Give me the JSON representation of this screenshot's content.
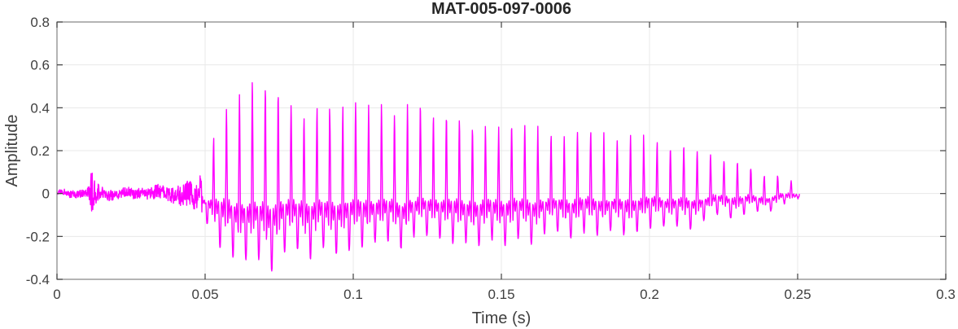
{
  "figure": {
    "title": "MAT-005-097-0006",
    "xlabel": "Time (s)",
    "ylabel": "Amplitude",
    "x_tick_labels": [
      "0",
      "0.05",
      "0.1",
      "0.15",
      "0.2",
      "0.25",
      "0.3"
    ],
    "y_tick_labels": [
      "-0.4",
      "-0.2",
      "0",
      "0.2",
      "0.4",
      "0.6",
      "0.8"
    ],
    "colors": {
      "background": "#ffffff",
      "line": "#FF00FF",
      "axis_box": "#8c8c8c",
      "tick_mark": "#3f3f3f",
      "grid": "#e8e8e8",
      "tick_label": "#3f3f3f",
      "axis_label": "#3f3f3f",
      "title": "#262626"
    }
  },
  "chart_data": {
    "type": "line",
    "title": "MAT-005-097-0006",
    "xlabel": "Time (s)",
    "ylabel": "Amplitude",
    "xlim": [
      0,
      0.3
    ],
    "ylim": [
      -0.4,
      0.8
    ],
    "x_ticks": [
      0,
      0.05,
      0.1,
      0.15,
      0.2,
      0.25,
      0.3
    ],
    "y_ticks": [
      -0.4,
      -0.2,
      0,
      0.2,
      0.4,
      0.6,
      0.8
    ],
    "grid": true,
    "legend": "none",
    "series": [
      {
        "name": "audio-waveform",
        "color": "#FF00FF",
        "approx_f0_hz": 225,
        "signal_start": 0,
        "voiced_onset": 0.043,
        "end_time": 0.25,
        "click_transient": {
          "time": 0.0118,
          "peak_amplitude": 0.11,
          "min_amplitude": -0.1
        },
        "peak": {
          "time": 0.068,
          "amplitude": 0.61
        },
        "trough": {
          "time": 0.068,
          "amplitude": -0.37
        },
        "envelope": {
          "t": [
            0,
            0.01,
            0.0115,
            0.0125,
            0.014,
            0.02,
            0.03,
            0.04,
            0.044,
            0.048,
            0.052,
            0.056,
            0.06,
            0.064,
            0.068,
            0.072,
            0.077,
            0.082,
            0.087,
            0.092,
            0.098,
            0.104,
            0.11,
            0.116,
            0.122,
            0.128,
            0.134,
            0.14,
            0.146,
            0.152,
            0.158,
            0.164,
            0.17,
            0.176,
            0.182,
            0.188,
            0.194,
            0.2,
            0.206,
            0.212,
            0.218,
            0.224,
            0.23,
            0.236,
            0.242,
            0.247,
            0.25
          ],
          "upper": [
            0.015,
            0.02,
            0.06,
            0.05,
            0.03,
            0.025,
            0.03,
            0.045,
            0.08,
            0.14,
            0.24,
            0.35,
            0.47,
            0.55,
            0.61,
            0.55,
            0.47,
            0.41,
            0.38,
            0.45,
            0.43,
            0.41,
            0.42,
            0.4,
            0.42,
            0.36,
            0.33,
            0.32,
            0.33,
            0.3,
            0.29,
            0.3,
            0.29,
            0.33,
            0.29,
            0.28,
            0.26,
            0.27,
            0.24,
            0.26,
            0.22,
            0.19,
            0.17,
            0.13,
            0.09,
            0.06,
            0.03
          ],
          "lower": [
            -0.015,
            -0.02,
            -0.05,
            -0.045,
            -0.03,
            -0.025,
            -0.03,
            -0.04,
            -0.07,
            -0.12,
            -0.2,
            -0.26,
            -0.3,
            -0.33,
            -0.37,
            -0.33,
            -0.3,
            -0.28,
            -0.27,
            -0.28,
            -0.26,
            -0.25,
            -0.25,
            -0.24,
            -0.24,
            -0.23,
            -0.28,
            -0.23,
            -0.22,
            -0.22,
            -0.21,
            -0.2,
            -0.2,
            -0.21,
            -0.2,
            -0.19,
            -0.19,
            -0.18,
            -0.17,
            -0.16,
            -0.14,
            -0.12,
            -0.11,
            -0.09,
            -0.07,
            -0.05,
            -0.02
          ]
        }
      }
    ]
  }
}
